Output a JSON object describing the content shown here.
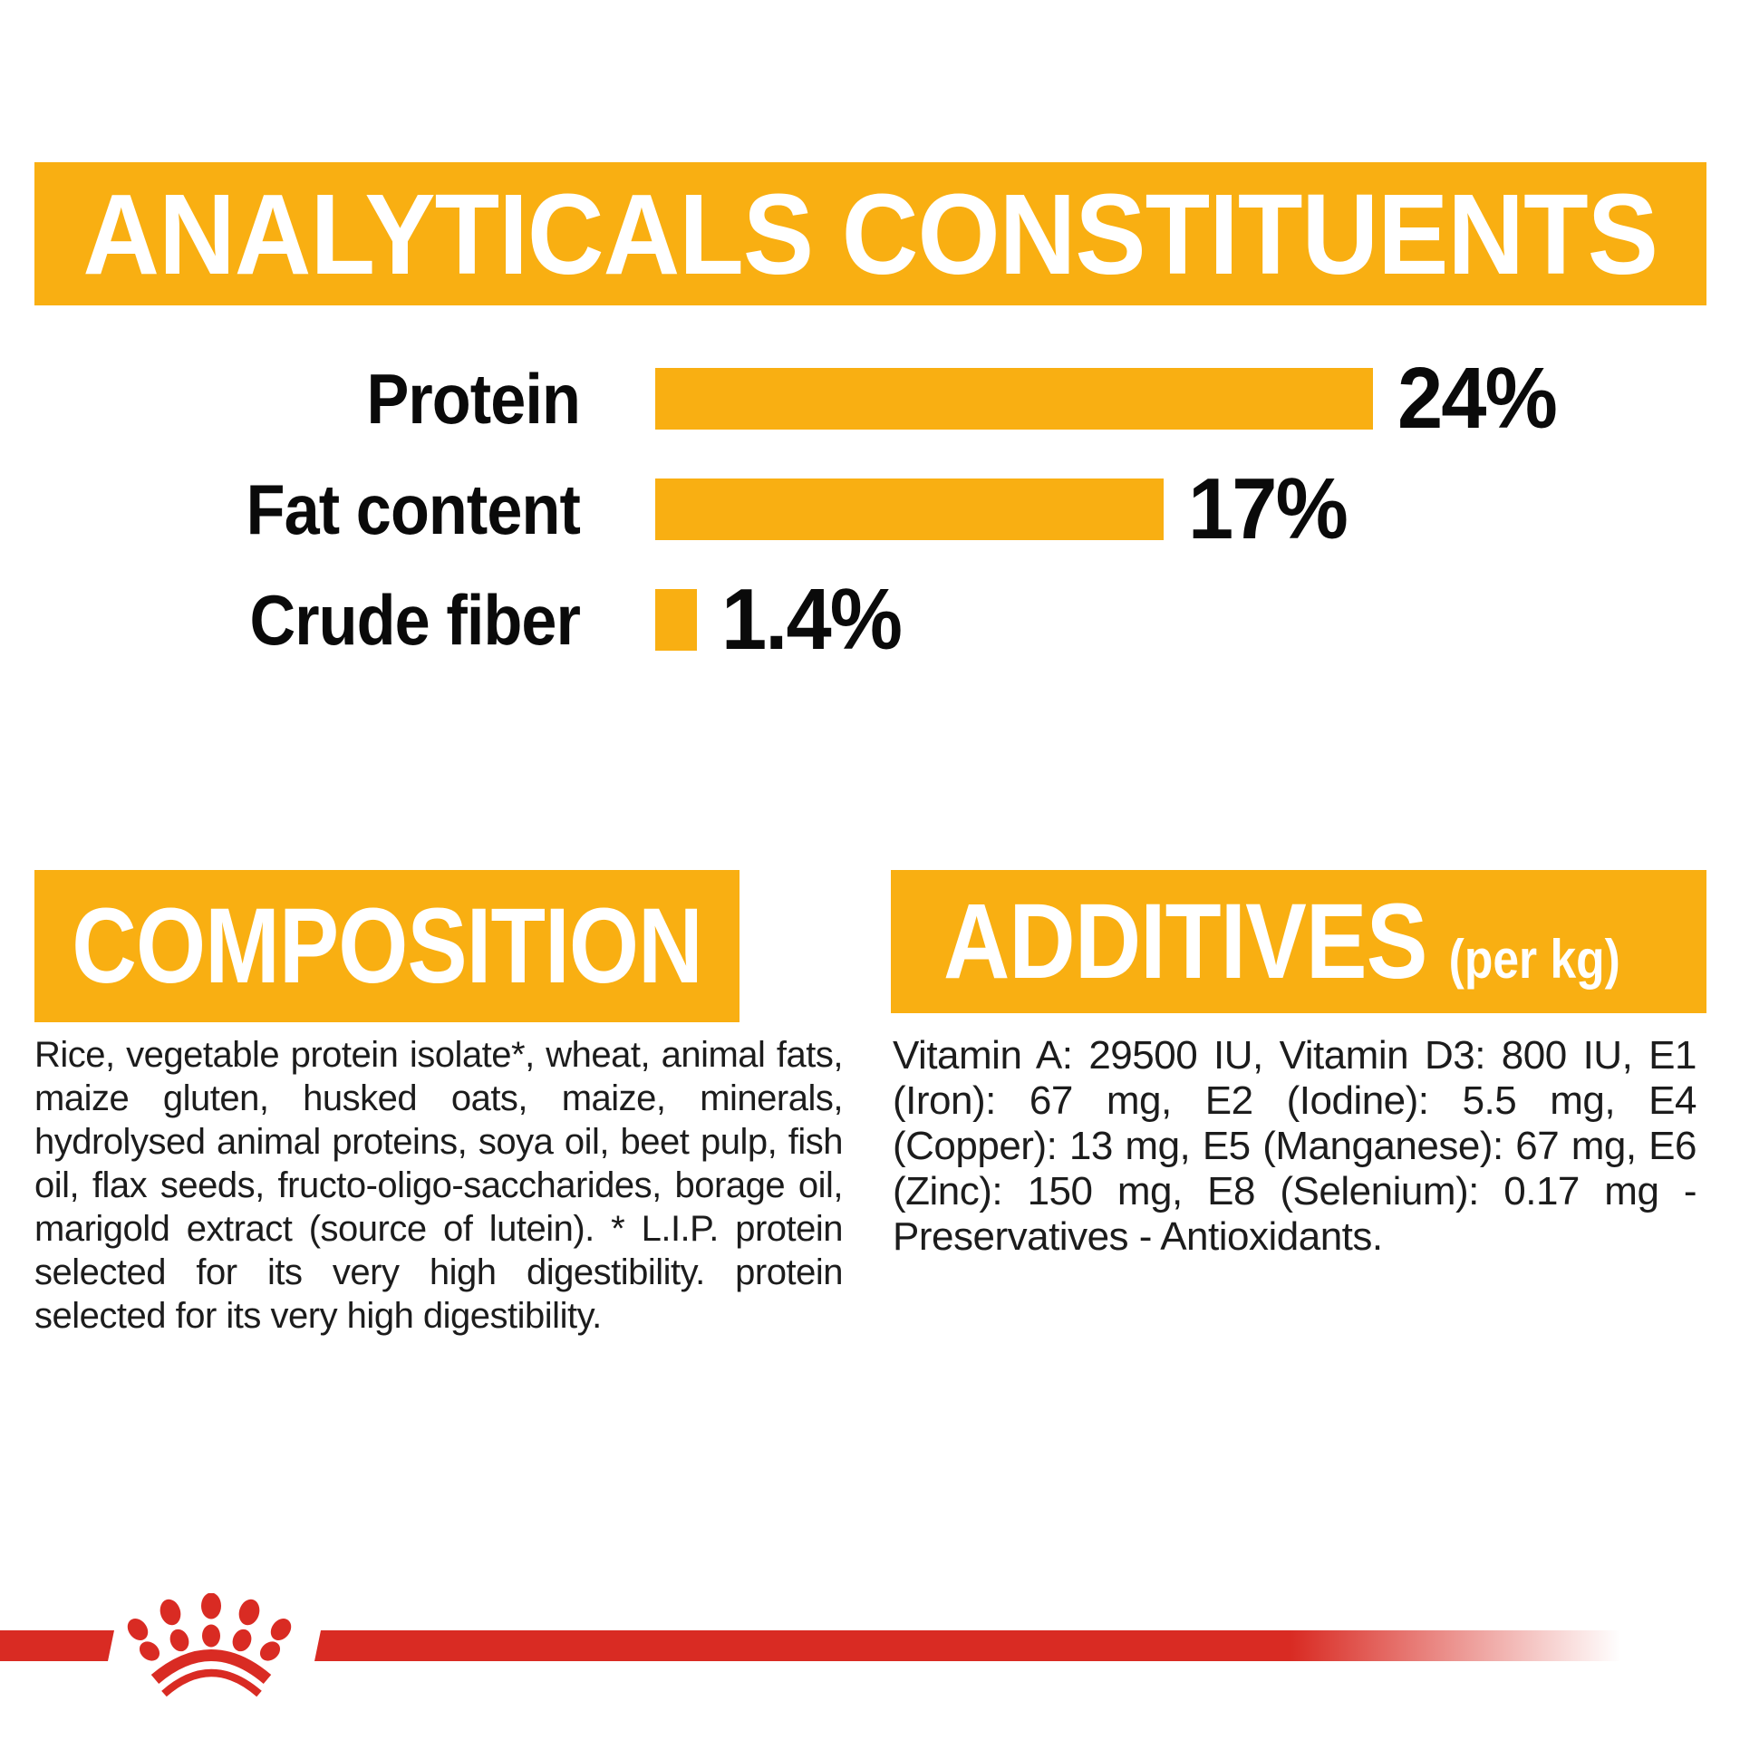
{
  "colors": {
    "brand_orange": "#F9AF12",
    "brand_red": "#D92B23",
    "text_black": "#0a0a0a",
    "body_text": "#1c1c1c",
    "background": "#ffffff"
  },
  "analytical": {
    "title": "ANALYTICALS CONSTITUENTS",
    "rows": [
      {
        "label": "Protein",
        "percent": 24,
        "value": "24%"
      },
      {
        "label": "Fat content",
        "percent": 17,
        "value": "17%"
      },
      {
        "label": "Crude fiber",
        "percent": 1.4,
        "value": "1.4%"
      }
    ]
  },
  "composition": {
    "title": "COMPOSITION",
    "body": "Rice, vegetable protein isolate*, wheat, animal fats, maize gluten, husked oats, maize, minerals, hydrolysed animal proteins, soya oil, beet pulp, fish oil, flax seeds, fructo-oligo-saccharides, borage oil, marigold extract (source of lutein). * L.I.P. protein selected for its very high digestibility. protein selected for its very high digestibility."
  },
  "additives": {
    "title": "ADDITIVES",
    "unit_label": "(per kg)",
    "body": "Vitamin A: 29500 IU, Vitamin D3: 800 IU, E1 (Iron): 67 mg, E2 (Iodine): 5.5 mg, E4 (Copper): 13 mg, E5 (Manganese): 67 mg, E6 (Zinc): 150 mg, E8 (Selenium): 0.17 mg - Preservatives - Antioxidants."
  },
  "brand": {
    "logo": "royal-canin-crown"
  },
  "chart_data": {
    "type": "bar",
    "orientation": "horizontal",
    "title": "ANALYTICALS CONSTITUENTS",
    "categories": [
      "Protein",
      "Fat content",
      "Crude fiber"
    ],
    "values": [
      24,
      17,
      1.4
    ],
    "value_labels": [
      "24%",
      "17%",
      "1.4%"
    ],
    "bar_color": "#F9AF12",
    "xlim": [
      0,
      26
    ],
    "grid": false,
    "legend": false
  }
}
